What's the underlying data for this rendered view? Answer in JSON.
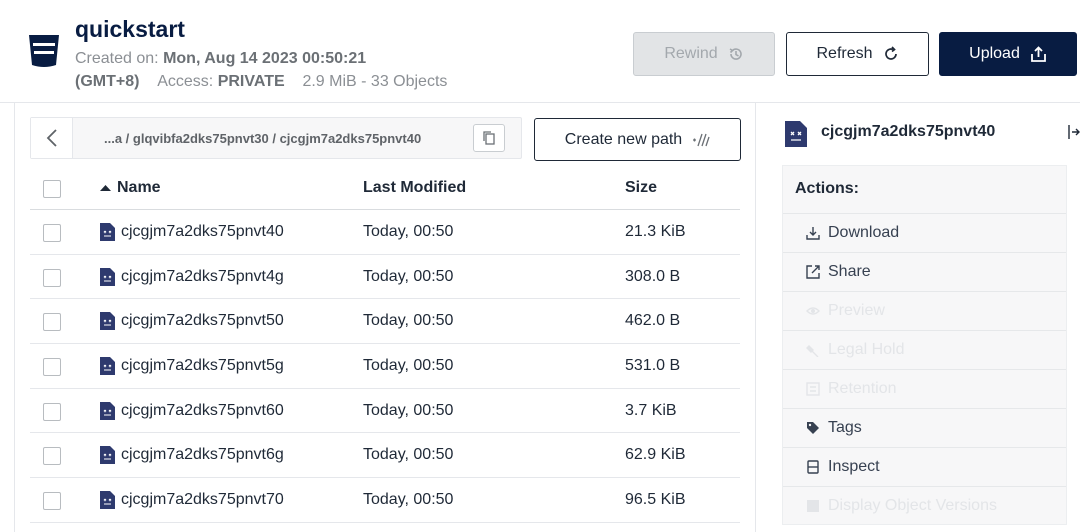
{
  "bucket": {
    "name": "quickstart",
    "created_label": "Created on:",
    "created_value": "Mon, Aug 14 2023 00:50:21",
    "timezone": "(GMT+8)",
    "access_label": "Access:",
    "access_value": "PRIVATE",
    "usage": "2.9 MiB - 33 Objects"
  },
  "toolbar": {
    "rewind_label": "Rewind",
    "refresh_label": "Refresh",
    "upload_label": "Upload"
  },
  "path": {
    "breadcrumb": "...a / glqvibfa2dks75pnvt30 / cjcgjm7a2dks75pnvt40",
    "create_label": "Create new path"
  },
  "table": {
    "columns": [
      "Name",
      "Last Modified",
      "Size"
    ],
    "rows": [
      {
        "name": "cjcgjm7a2dks75pnvt40",
        "modified": "Today, 00:50",
        "size": "21.3 KiB"
      },
      {
        "name": "cjcgjm7a2dks75pnvt4g",
        "modified": "Today, 00:50",
        "size": "308.0 B"
      },
      {
        "name": "cjcgjm7a2dks75pnvt50",
        "modified": "Today, 00:50",
        "size": "462.0 B"
      },
      {
        "name": "cjcgjm7a2dks75pnvt5g",
        "modified": "Today, 00:50",
        "size": "531.0 B"
      },
      {
        "name": "cjcgjm7a2dks75pnvt60",
        "modified": "Today, 00:50",
        "size": "3.7 KiB"
      },
      {
        "name": "cjcgjm7a2dks75pnvt6g",
        "modified": "Today, 00:50",
        "size": "62.9 KiB"
      },
      {
        "name": "cjcgjm7a2dks75pnvt70",
        "modified": "Today, 00:50",
        "size": "96.5 KiB"
      }
    ]
  },
  "detail": {
    "selected_name": "cjcgjm7a2dks75pnvt40",
    "actions_title": "Actions:",
    "actions": [
      {
        "label": "Download",
        "icon": "download-icon",
        "enabled": true
      },
      {
        "label": "Share",
        "icon": "share-icon",
        "enabled": true
      },
      {
        "label": "Preview",
        "icon": "eye-icon",
        "enabled": false
      },
      {
        "label": "Legal Hold",
        "icon": "gavel-icon",
        "enabled": false
      },
      {
        "label": "Retention",
        "icon": "retention-icon",
        "enabled": false
      },
      {
        "label": "Tags",
        "icon": "tag-icon",
        "enabled": true
      },
      {
        "label": "Inspect",
        "icon": "inspect-icon",
        "enabled": true
      },
      {
        "label": "Display Object Versions",
        "icon": "versions-icon",
        "enabled": false
      }
    ]
  },
  "colors": {
    "primary": "#081c42",
    "disabled_bg": "#e2e4e6",
    "muted_text": "#8b8f94"
  }
}
